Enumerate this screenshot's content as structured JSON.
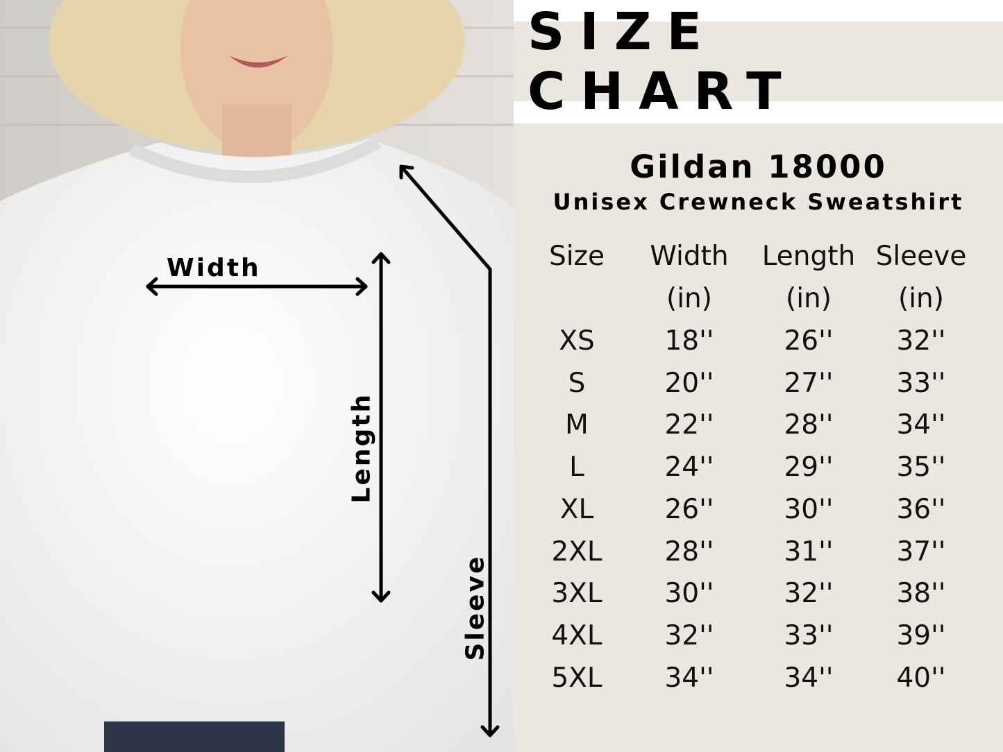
{
  "header": {
    "title": "SIZE CHART"
  },
  "product": {
    "name": "Gildan 18000",
    "description": "Unisex Crewneck Sweatshirt"
  },
  "photo": {
    "labels": {
      "width": "Width",
      "length": "Length",
      "sleeve": "Sleeve"
    }
  },
  "table": {
    "headers": [
      {
        "line1": "Size",
        "line2": ""
      },
      {
        "line1": "Width",
        "line2": "(in)"
      },
      {
        "line1": "Length",
        "line2": "(in)"
      },
      {
        "line1": "Sleeve",
        "line2": "(in)"
      }
    ],
    "rows": [
      [
        "XS",
        "18''",
        "26''",
        "32''"
      ],
      [
        "S",
        "20''",
        "27''",
        "33''"
      ],
      [
        "M",
        "22''",
        "28''",
        "34''"
      ],
      [
        "L",
        "24''",
        "29''",
        "35''"
      ],
      [
        "XL",
        "26''",
        "30''",
        "36''"
      ],
      [
        "2XL",
        "28''",
        "31''",
        "37''"
      ],
      [
        "3XL",
        "30''",
        "32''",
        "38''"
      ],
      [
        "4XL",
        "32''",
        "33''",
        "39''"
      ],
      [
        "5XL",
        "34''",
        "34''",
        "40''"
      ]
    ]
  },
  "colors": {
    "panel": "#ebe6df",
    "text": "#000000"
  }
}
